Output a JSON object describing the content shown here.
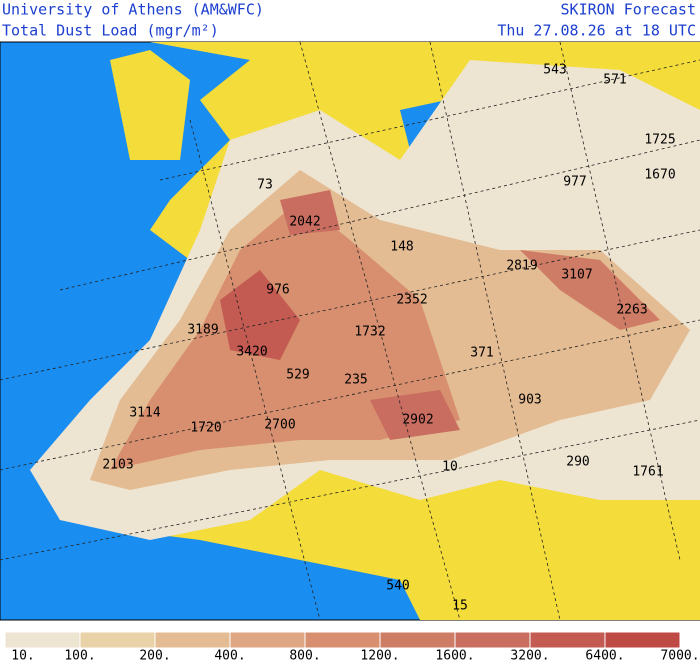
{
  "header": {
    "institution": "University of Athens (AM&WFC)",
    "field": "Total Dust Load (mgr/m²)",
    "product": "SKIRON Forecast",
    "valid_time": "Thu 27.08.26 at 18 UTC"
  },
  "map_values": [
    543,
    571,
    1725,
    1670,
    977,
    73,
    2042,
    148,
    2819,
    3107,
    976,
    2352,
    2263,
    3189,
    1732,
    3420,
    371,
    529,
    235,
    903,
    3114,
    2902,
    1720,
    2700,
    10,
    290,
    1761,
    2103,
    540,
    15
  ],
  "legend": {
    "labels": [
      "10.",
      "100.",
      "200.",
      "400.",
      "800.",
      "1200.",
      "1600.",
      "3200.",
      "6400.",
      "7000."
    ],
    "colors": [
      "#ede4d1",
      "#e9d1a8",
      "#e4bc93",
      "#dea683",
      "#d78f6f",
      "#cf7c66",
      "#c96d60",
      "#c45b52",
      "#bf4944"
    ]
  }
}
